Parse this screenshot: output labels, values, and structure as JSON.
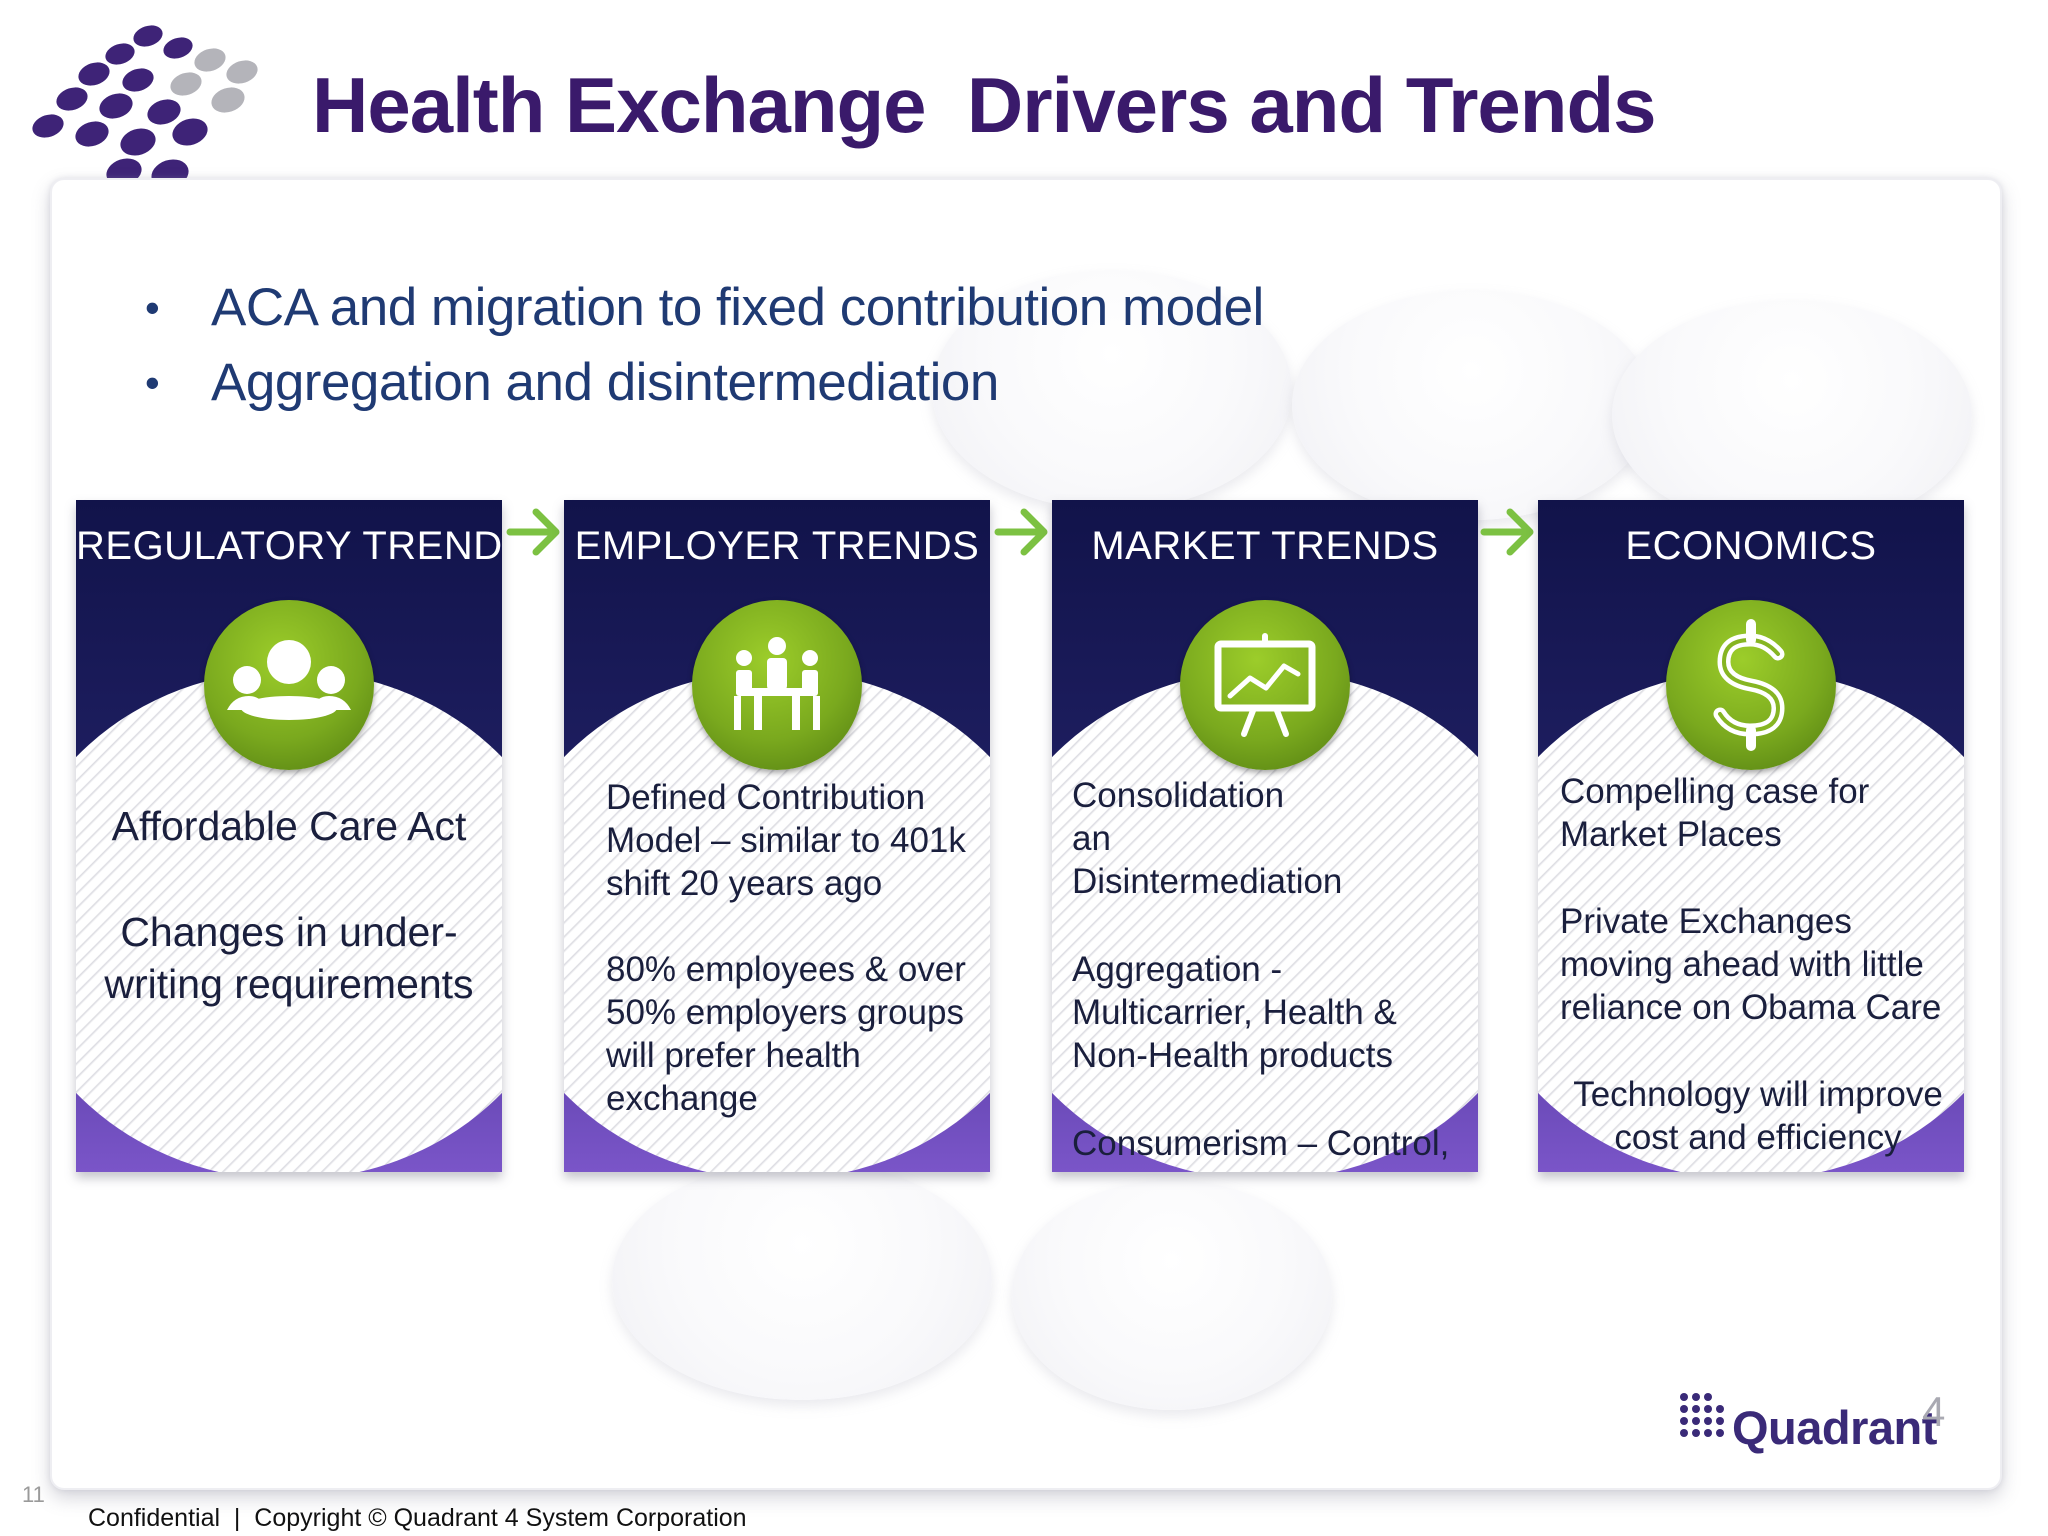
{
  "slide": {
    "title": "Health Exchange  Drivers and Trends",
    "bullets": [
      "ACA and migration to fixed contribution model",
      "Aggregation and disintermediation"
    ],
    "bullet_symbol": "•",
    "cards": [
      {
        "title": "REGULATORY TRENDS",
        "icon": "group-meeting-icon",
        "paragraphs": [
          "Affordable Care Act",
          "Changes in under-writing requirements"
        ]
      },
      {
        "title": "EMPLOYER TRENDS",
        "icon": "people-at-table-icon",
        "paragraphs": [
          "Defined Contribution Model – similar to 401k shift 20 years ago",
          "80% employees & over 50% employers groups will prefer health exchange"
        ]
      },
      {
        "title": "MARKET TRENDS",
        "icon": "presentation-board-icon",
        "paragraphs": [
          "Consolidation an Disintermediation",
          "Aggregation - Multicarrier, Health & Non-Health products",
          "Consumerism – Control, Freedom and Flexibility"
        ]
      },
      {
        "title": "ECONOMICS",
        "icon": "dollar-sign-icon",
        "paragraphs": [
          "Compelling case for Market Places",
          "Private Exchanges moving ahead with little reliance on Obama Care",
          "Technology will improve cost and efficiency"
        ]
      }
    ],
    "brand": {
      "name": "Quadrant",
      "superscript": "4"
    },
    "slide_number": "11",
    "footer": "Confidential  |  Copyright © Quadrant 4 System Corporation"
  },
  "colors": {
    "title": "#3a1a6b",
    "bullet_text": "#1f3a73",
    "card_top": "#11134a",
    "card_bottom": "#7a55c8",
    "icon_green": "#7aa91e",
    "arrow_green": "#7cc142",
    "brand_purple": "#3a2a78"
  }
}
